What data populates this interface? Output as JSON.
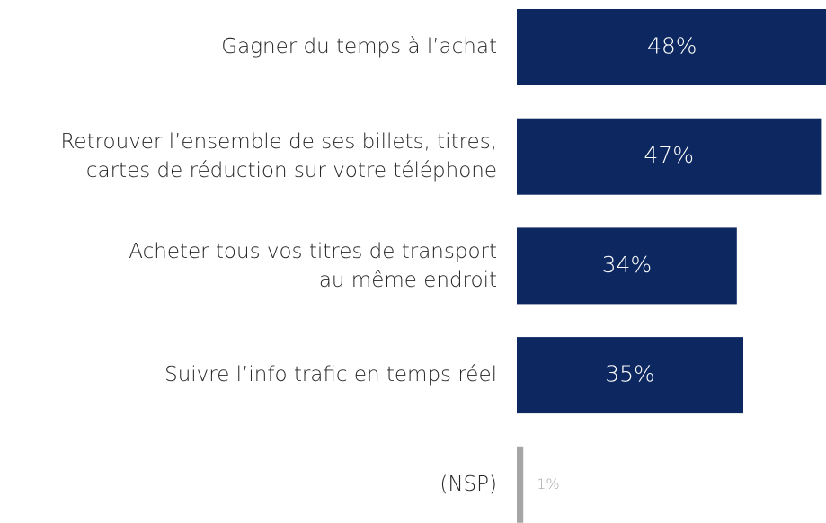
{
  "chart_data": {
    "type": "barh",
    "categories": [
      "Gagner du temps à l’achat",
      "Retrouver l’ensemble de ses billets, titres,\ncartes de réduction sur votre téléphone",
      "Acheter tous vos titres de transport\nau même endroit",
      "Suivre l’info trafic en temps réel",
      "(NSP)"
    ],
    "values": [
      48,
      47,
      34,
      35,
      1
    ],
    "value_labels": [
      "48%",
      "47%",
      "34%",
      "35%",
      "1%"
    ],
    "colors": [
      "#0d2860",
      "#0d2860",
      "#0d2860",
      "#0d2860",
      "#a6a6a6"
    ]
  }
}
